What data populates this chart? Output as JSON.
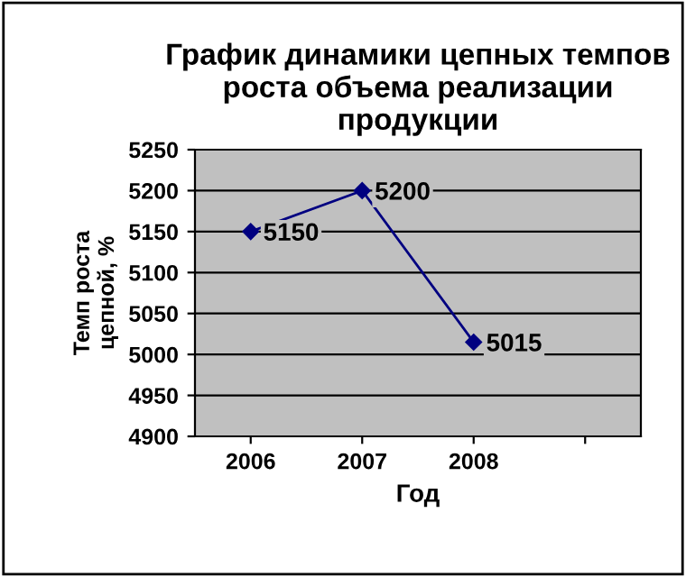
{
  "chart_data": {
    "type": "line",
    "title": "График динамики цепных темпов\nроста объема реализации\nпродукции",
    "xlabel": "Год",
    "ylabel": "Темп роста\nцепной, %",
    "categories": [
      "2006",
      "2007",
      "2008",
      null
    ],
    "series": [
      {
        "color": "#000080",
        "values": [
          5150,
          5200,
          5015,
          null
        ]
      }
    ],
    "ylim": [
      4900,
      5250
    ],
    "yticks": [
      4900,
      4950,
      5000,
      5050,
      5100,
      5150,
      5200,
      5250
    ],
    "grid": "y",
    "marker": "diamond",
    "line_style": "solid",
    "data_labels": true,
    "legend": false
  }
}
